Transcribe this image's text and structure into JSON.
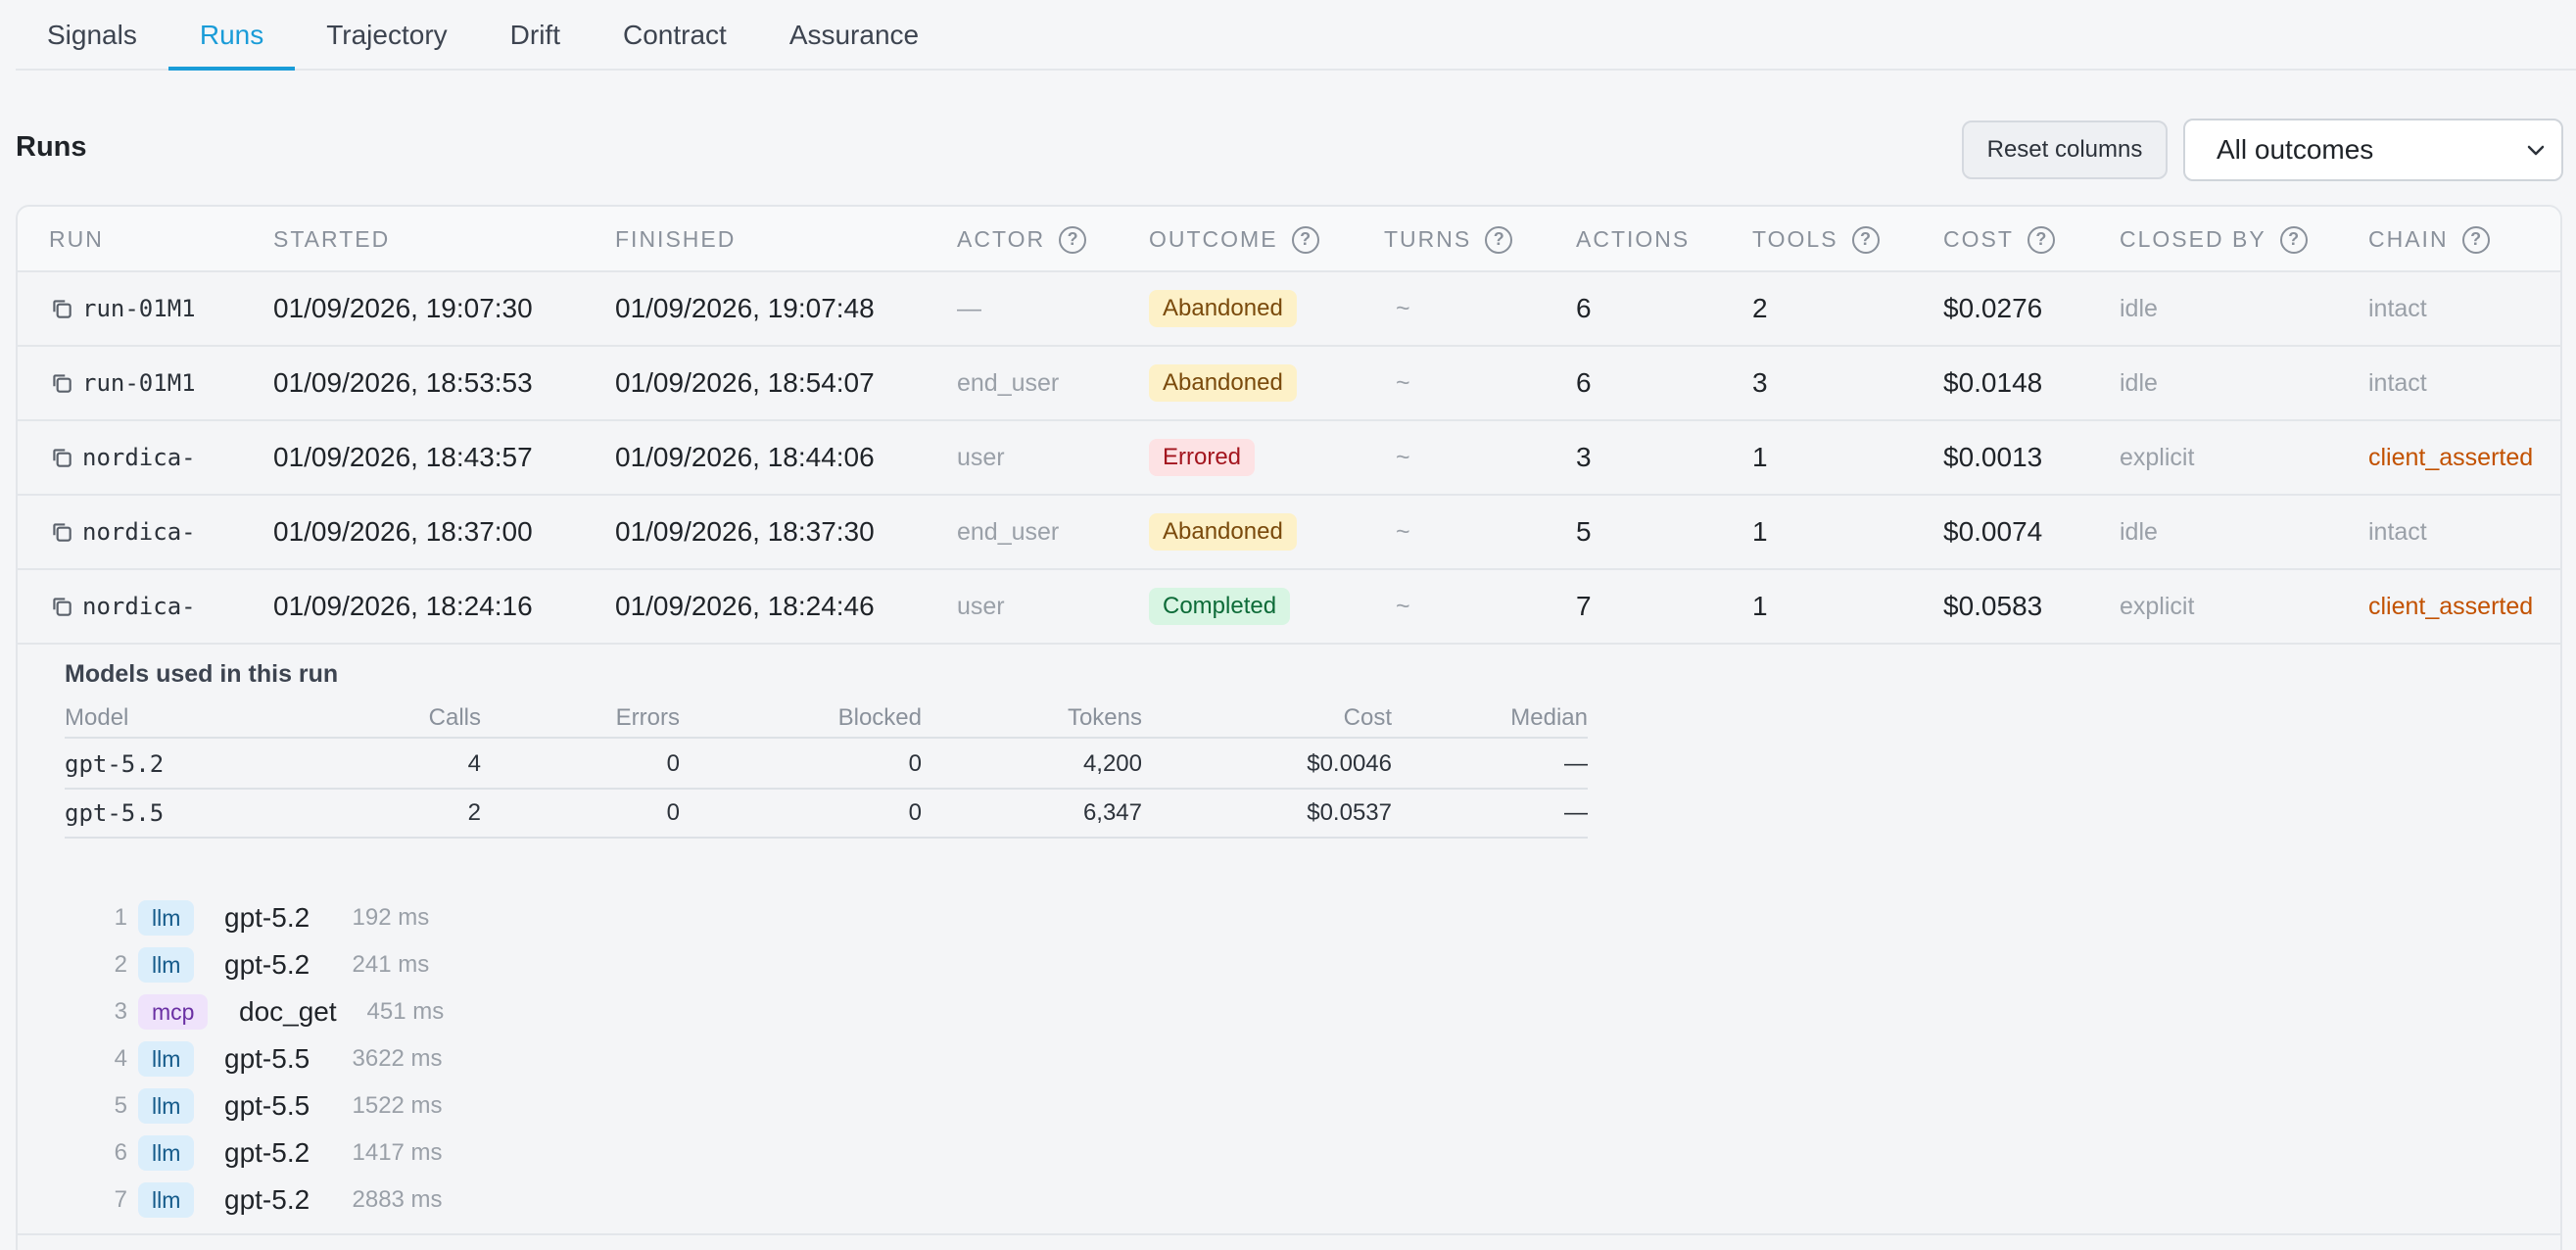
{
  "tabs": [
    "Signals",
    "Runs",
    "Trajectory",
    "Drift",
    "Contract",
    "Assurance"
  ],
  "active_tab": "Runs",
  "header": {
    "title": "Runs",
    "reset_label": "Reset columns",
    "outcome_filter": "All outcomes"
  },
  "columns": {
    "run": "RUN",
    "started": "STARTED",
    "finished": "FINISHED",
    "actor": "ACTOR",
    "outcome": "OUTCOME",
    "turns": "TURNS",
    "actions": "ACTIONS",
    "tools": "TOOLS",
    "cost": "COST",
    "closed_by": "CLOSED BY",
    "chain": "CHAIN"
  },
  "rows": [
    {
      "run": "run-01M1",
      "started": "01/09/2026, 19:07:30",
      "finished": "01/09/2026, 19:07:48",
      "actor": "—",
      "outcome": "Abandoned",
      "turns": "~",
      "actions": "6",
      "tools": "2",
      "cost": "$0.0276",
      "closed_by": "idle",
      "chain": "intact"
    },
    {
      "run": "run-01M1",
      "started": "01/09/2026, 18:53:53",
      "finished": "01/09/2026, 18:54:07",
      "actor": "end_user",
      "outcome": "Abandoned",
      "turns": "~",
      "actions": "6",
      "tools": "3",
      "cost": "$0.0148",
      "closed_by": "idle",
      "chain": "intact"
    },
    {
      "run": "nordica-",
      "started": "01/09/2026, 18:43:57",
      "finished": "01/09/2026, 18:44:06",
      "actor": "user",
      "outcome": "Errored",
      "turns": "~",
      "actions": "3",
      "tools": "1",
      "cost": "$0.0013",
      "closed_by": "explicit",
      "chain": "client_asserted"
    },
    {
      "run": "nordica-",
      "started": "01/09/2026, 18:37:00",
      "finished": "01/09/2026, 18:37:30",
      "actor": "end_user",
      "outcome": "Abandoned",
      "turns": "~",
      "actions": "5",
      "tools": "1",
      "cost": "$0.0074",
      "closed_by": "idle",
      "chain": "intact"
    },
    {
      "run": "nordica-",
      "started": "01/09/2026, 18:24:16",
      "finished": "01/09/2026, 18:24:46",
      "actor": "user",
      "outcome": "Completed",
      "turns": "~",
      "actions": "7",
      "tools": "1",
      "cost": "$0.0583",
      "closed_by": "explicit",
      "chain": "client_asserted"
    }
  ],
  "expanded": {
    "models_title": "Models used in this run",
    "model_columns": [
      "Model",
      "Calls",
      "Errors",
      "Blocked",
      "Tokens",
      "Cost",
      "Median"
    ],
    "models": [
      {
        "model": "gpt-5.2",
        "calls": "4",
        "errors": "0",
        "blocked": "0",
        "tokens": "4,200",
        "cost": "$0.0046",
        "median": "—"
      },
      {
        "model": "gpt-5.5",
        "calls": "2",
        "errors": "0",
        "blocked": "0",
        "tokens": "6,347",
        "cost": "$0.0537",
        "median": "—"
      }
    ],
    "steps": [
      {
        "n": "1",
        "kind": "llm",
        "name": "gpt-5.2",
        "dur": "192 ms"
      },
      {
        "n": "2",
        "kind": "llm",
        "name": "gpt-5.2",
        "dur": "241 ms"
      },
      {
        "n": "3",
        "kind": "mcp",
        "name": "doc_get",
        "dur": "451 ms"
      },
      {
        "n": "4",
        "kind": "llm",
        "name": "gpt-5.5",
        "dur": "3622 ms"
      },
      {
        "n": "5",
        "kind": "llm",
        "name": "gpt-5.5",
        "dur": "1522 ms"
      },
      {
        "n": "6",
        "kind": "llm",
        "name": "gpt-5.2",
        "dur": "1417 ms"
      },
      {
        "n": "7",
        "kind": "llm",
        "name": "gpt-5.2",
        "dur": "2883 ms"
      }
    ]
  },
  "colors": {
    "accent": "#1a9cd8",
    "warn": "#c25100",
    "abandoned_bg": "#fdf1c8",
    "errored_bg": "#fde2e4",
    "completed_bg": "#d8f5e3"
  }
}
